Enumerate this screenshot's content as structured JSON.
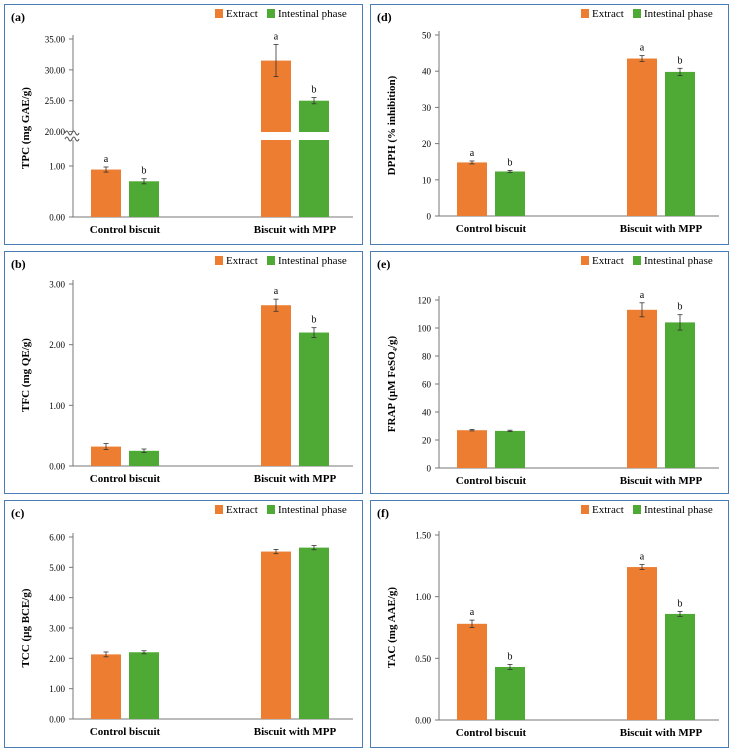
{
  "colors": {
    "extract": "#ed7d31",
    "intestinal": "#4eaa34",
    "frame": "#4a7db5"
  },
  "chart_data": [
    {
      "panel": "(a)",
      "type": "bar",
      "ylabel": "TPC (mg GAE/g)",
      "categories": [
        "Control biscuit",
        "Biscuit with MPP"
      ],
      "legend": [
        "Extract",
        "Intestinal phase"
      ],
      "series": [
        {
          "name": "Extract",
          "values": [
            0.93,
            31.5
          ],
          "errors": [
            0.05,
            2.6
          ],
          "letters": [
            "a",
            "a"
          ]
        },
        {
          "name": "Intestinal phase",
          "values": [
            0.7,
            25.0
          ],
          "errors": [
            0.05,
            0.5
          ],
          "letters": [
            "b",
            "b"
          ]
        }
      ],
      "axis_break": {
        "low": 1.5,
        "high": 20.0
      },
      "ticks": [
        0,
        1,
        20,
        25,
        30,
        35
      ],
      "tick_labels": [
        "0.00",
        "1.00",
        "20.00",
        "25.00",
        "30.00",
        "35.00"
      ]
    },
    {
      "panel": "(b)",
      "type": "bar",
      "ylabel": "TFC (mg QE/g)",
      "categories": [
        "Control biscuit",
        "Biscuit with MPP"
      ],
      "legend": [
        "Extract",
        "Intestinal phase"
      ],
      "series": [
        {
          "name": "Extract",
          "values": [
            0.32,
            2.65
          ],
          "errors": [
            0.05,
            0.1
          ],
          "letters": [
            "",
            "a"
          ]
        },
        {
          "name": "Intestinal phase",
          "values": [
            0.25,
            2.2
          ],
          "errors": [
            0.03,
            0.08
          ],
          "letters": [
            "",
            "b"
          ]
        }
      ],
      "ylim": [
        0,
        3
      ],
      "ticks": [
        0,
        1,
        2,
        3
      ],
      "tick_labels": [
        "0.00",
        "1.00",
        "2.00",
        "3.00"
      ]
    },
    {
      "panel": "(c)",
      "type": "bar",
      "ylabel": "TCC (µg BCE/g)",
      "categories": [
        "Control biscuit",
        "Biscuit with MPP"
      ],
      "legend": [
        "Extract",
        "Intestinal phase"
      ],
      "series": [
        {
          "name": "Extract",
          "values": [
            2.13,
            5.52
          ],
          "errors": [
            0.08,
            0.07
          ],
          "letters": [
            "",
            ""
          ]
        },
        {
          "name": "Intestinal phase",
          "values": [
            2.2,
            5.65
          ],
          "errors": [
            0.05,
            0.07
          ],
          "letters": [
            "",
            ""
          ]
        }
      ],
      "ylim": [
        0,
        6
      ],
      "ticks": [
        0,
        1,
        2,
        3,
        4,
        5,
        6
      ],
      "tick_labels": [
        "0.00",
        "1.00",
        "2.00",
        "3.00",
        "4.00",
        "5.00",
        "6.00"
      ]
    },
    {
      "panel": "(d)",
      "type": "bar",
      "ylabel": "DPPH (% inhibition)",
      "categories": [
        "Control biscuit",
        "Biscuit with MPP"
      ],
      "legend": [
        "Extract",
        "Intestinal phase"
      ],
      "series": [
        {
          "name": "Extract",
          "values": [
            14.8,
            43.5
          ],
          "errors": [
            0.4,
            0.8
          ],
          "letters": [
            "a",
            "a"
          ]
        },
        {
          "name": "Intestinal phase",
          "values": [
            12.3,
            39.8
          ],
          "errors": [
            0.3,
            1.0
          ],
          "letters": [
            "b",
            "b"
          ]
        }
      ],
      "ylim": [
        0,
        50
      ],
      "ticks": [
        0,
        10,
        20,
        30,
        40,
        50
      ],
      "tick_labels": [
        "0",
        "10",
        "20",
        "30",
        "40",
        "50"
      ]
    },
    {
      "panel": "(e)",
      "type": "bar",
      "ylabel": "FRAP (µM FeSO₄/g)",
      "categories": [
        "Control biscuit",
        "Biscuit with MPP"
      ],
      "legend": [
        "Extract",
        "Intestinal phase"
      ],
      "series": [
        {
          "name": "Extract",
          "values": [
            27.0,
            113.0
          ],
          "errors": [
            0.5,
            5.0
          ],
          "letters": [
            "",
            "a"
          ]
        },
        {
          "name": "Intestinal phase",
          "values": [
            26.5,
            104.0
          ],
          "errors": [
            0.5,
            5.5
          ],
          "letters": [
            "",
            "b"
          ]
        }
      ],
      "ylim": [
        0,
        120
      ],
      "ticks": [
        0,
        20,
        40,
        60,
        80,
        100,
        120
      ],
      "tick_labels": [
        "0",
        "20",
        "40",
        "60",
        "80",
        "100",
        "120"
      ]
    },
    {
      "panel": "(f)",
      "type": "bar",
      "ylabel": "TAC (mg AAE/g)",
      "categories": [
        "Control biscuit",
        "Biscuit with MPP"
      ],
      "legend": [
        "Extract",
        "Intestinal phase"
      ],
      "series": [
        {
          "name": "Extract",
          "values": [
            0.78,
            1.24
          ],
          "errors": [
            0.03,
            0.02
          ],
          "letters": [
            "a",
            "a"
          ]
        },
        {
          "name": "Intestinal phase",
          "values": [
            0.43,
            0.86
          ],
          "errors": [
            0.02,
            0.02
          ],
          "letters": [
            "b",
            "b"
          ]
        }
      ],
      "ylim": [
        0,
        1.5
      ],
      "ticks": [
        0,
        0.5,
        1.0,
        1.5
      ],
      "tick_labels": [
        "0.00",
        "0.50",
        "1.00",
        "1.50"
      ]
    }
  ]
}
